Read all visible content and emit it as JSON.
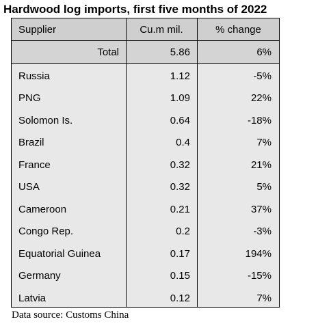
{
  "title": "Hardwood log imports, first five months of 2022",
  "table": {
    "headers": {
      "supplier": "Supplier",
      "volume": "Cu.m mil.",
      "change": "% change"
    },
    "total": {
      "supplier": "Total",
      "volume": "5.86",
      "change": "6%"
    },
    "rows": [
      {
        "supplier": "Russia",
        "volume": "1.12",
        "change": "-5%"
      },
      {
        "supplier": "PNG",
        "volume": "1.09",
        "change": "22%"
      },
      {
        "supplier": "Solomon Is.",
        "volume": "0.64",
        "change": "-18%"
      },
      {
        "supplier": "Brazil",
        "volume": "0.4",
        "change": "7%"
      },
      {
        "supplier": "France",
        "volume": "0.32",
        "change": "21%"
      },
      {
        "supplier": "USA",
        "volume": "0.32",
        "change": "5%"
      },
      {
        "supplier": "Cameroon",
        "volume": "0.21",
        "change": "37%"
      },
      {
        "supplier": "Congo Rep.",
        "volume": "0.2",
        "change": "-3%"
      },
      {
        "supplier": "Equatorial Guinea",
        "volume": "0.17",
        "change": "194%"
      },
      {
        "supplier": "Germany",
        "volume": "0.15",
        "change": "-15%"
      },
      {
        "supplier": "Latvia",
        "volume": "0.12",
        "change": "7%"
      }
    ]
  },
  "source": "Data source: Customs China",
  "colors": {
    "header_bg": "#cfcfcf",
    "total_bg": "#d4d4d4",
    "body_bg": "#e8e8e8",
    "border": "#000000"
  }
}
